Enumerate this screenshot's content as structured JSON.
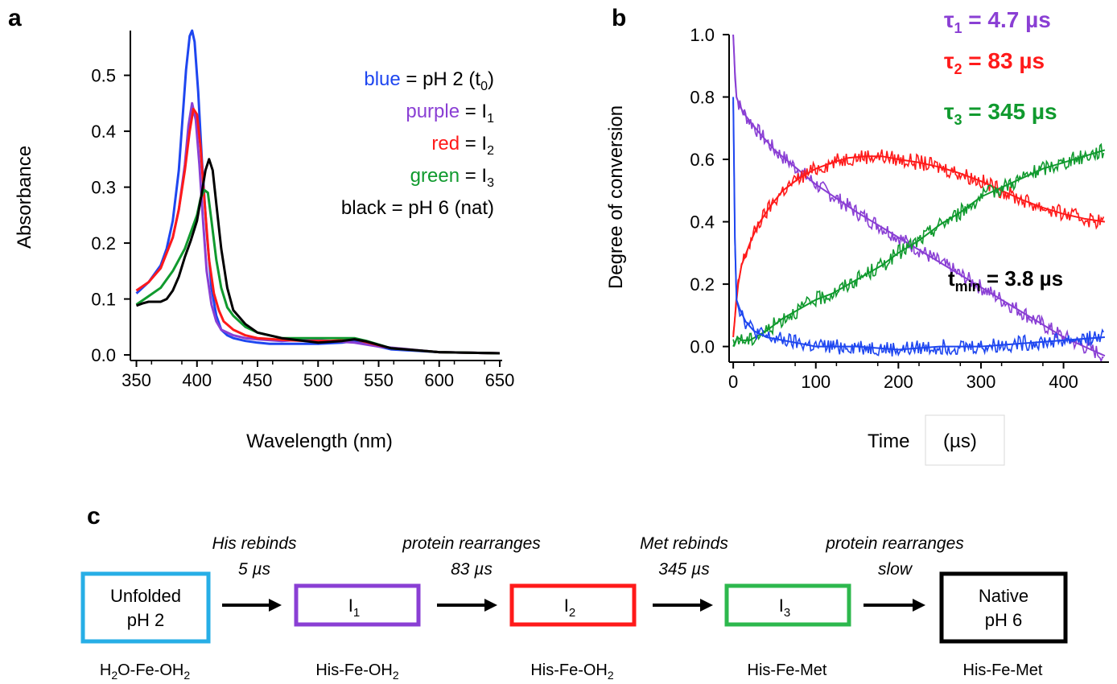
{
  "panels": {
    "a": "a",
    "b": "b",
    "c": "c"
  },
  "colors": {
    "blue": "#1e46f0",
    "purple": "#8a3fd4",
    "red": "#ff1a1a",
    "green": "#109a2e",
    "black": "#000000",
    "cyan": "#27aee6",
    "boxgreen": "#2db84d"
  },
  "chart_data": [
    {
      "id": "a",
      "type": "line",
      "xlabel": "Wavelength (nm)",
      "ylabel": "Absorbance",
      "xlim": [
        345,
        652
      ],
      "ylim": [
        -0.01,
        0.58
      ],
      "xticks": [
        350,
        400,
        450,
        500,
        550,
        600,
        650
      ],
      "yticks": [
        "0.0",
        "0.1",
        "0.2",
        "0.3",
        "0.4",
        "0.5"
      ],
      "legend": [
        {
          "color_word": "blue",
          "rest": " = pH 2 (t",
          "sub": "0",
          "tail": ")"
        },
        {
          "color_word": "purple",
          "rest": " = I",
          "sub": "1",
          "tail": ""
        },
        {
          "color_word": "red",
          "rest": " = I",
          "sub": "2",
          "tail": ""
        },
        {
          "color_word": "green",
          "rest": " = I",
          "sub": "3",
          "tail": ""
        },
        {
          "color_word": "black",
          "rest": " = pH 6 (nat)",
          "sub": "",
          "tail": ""
        }
      ],
      "series": [
        {
          "name": "blue",
          "x": [
            350,
            360,
            370,
            375,
            380,
            385,
            388,
            391,
            394,
            396,
            398,
            401,
            404,
            408,
            412,
            416,
            420,
            425,
            430,
            440,
            450,
            460,
            480,
            500,
            520,
            530,
            540,
            560,
            600,
            650
          ],
          "y": [
            0.11,
            0.13,
            0.16,
            0.19,
            0.24,
            0.33,
            0.42,
            0.51,
            0.57,
            0.58,
            0.56,
            0.47,
            0.35,
            0.22,
            0.12,
            0.07,
            0.045,
            0.035,
            0.03,
            0.025,
            0.022,
            0.02,
            0.02,
            0.02,
            0.022,
            0.025,
            0.02,
            0.01,
            0.005,
            0.003
          ]
        },
        {
          "name": "purple",
          "x": [
            350,
            360,
            370,
            380,
            385,
            390,
            393,
            396,
            399,
            402,
            405,
            408,
            412,
            416,
            420,
            430,
            440,
            450,
            470,
            490,
            510,
            530,
            550,
            600,
            650
          ],
          "y": [
            0.115,
            0.13,
            0.155,
            0.21,
            0.26,
            0.34,
            0.41,
            0.45,
            0.42,
            0.34,
            0.24,
            0.15,
            0.09,
            0.06,
            0.045,
            0.035,
            0.03,
            0.028,
            0.025,
            0.028,
            0.025,
            0.022,
            0.015,
            0.005,
            0.003
          ]
        },
        {
          "name": "red",
          "x": [
            350,
            360,
            370,
            380,
            385,
            390,
            394,
            397,
            400,
            403,
            406,
            410,
            414,
            418,
            422,
            430,
            440,
            450,
            470,
            490,
            510,
            530,
            545,
            560,
            600,
            650
          ],
          "y": [
            0.115,
            0.13,
            0.155,
            0.21,
            0.26,
            0.33,
            0.4,
            0.44,
            0.43,
            0.37,
            0.28,
            0.17,
            0.11,
            0.08,
            0.06,
            0.045,
            0.035,
            0.03,
            0.027,
            0.025,
            0.025,
            0.028,
            0.02,
            0.012,
            0.005,
            0.003
          ]
        },
        {
          "name": "green",
          "x": [
            350,
            360,
            370,
            380,
            390,
            395,
            400,
            403,
            406,
            409,
            412,
            416,
            420,
            425,
            430,
            440,
            450,
            470,
            500,
            520,
            530,
            540,
            560,
            600,
            650
          ],
          "y": [
            0.09,
            0.105,
            0.12,
            0.15,
            0.19,
            0.22,
            0.25,
            0.28,
            0.295,
            0.29,
            0.24,
            0.17,
            0.12,
            0.085,
            0.07,
            0.05,
            0.04,
            0.03,
            0.03,
            0.03,
            0.03,
            0.025,
            0.012,
            0.005,
            0.003
          ]
        },
        {
          "name": "black",
          "x": [
            350,
            355,
            360,
            370,
            375,
            380,
            385,
            390,
            395,
            400,
            404,
            407,
            410,
            413,
            416,
            420,
            425,
            430,
            440,
            450,
            470,
            500,
            520,
            530,
            540,
            560,
            600,
            650
          ],
          "y": [
            0.088,
            0.092,
            0.095,
            0.095,
            0.1,
            0.115,
            0.14,
            0.175,
            0.205,
            0.24,
            0.29,
            0.33,
            0.35,
            0.33,
            0.27,
            0.19,
            0.12,
            0.08,
            0.055,
            0.04,
            0.03,
            0.022,
            0.025,
            0.028,
            0.024,
            0.012,
            0.005,
            0.003
          ]
        }
      ]
    },
    {
      "id": "b",
      "type": "line",
      "xlabel": "Time",
      "xlabel_unit": "(µs)",
      "ylabel": "Degree of conversion",
      "xlim": [
        -5,
        455
      ],
      "ylim": [
        -0.05,
        1.0
      ],
      "xticks": [
        0,
        100,
        200,
        300,
        400
      ],
      "yticks": [
        "0.0",
        "0.2",
        "0.4",
        "0.6",
        "0.8",
        "1.0"
      ],
      "annotations": [
        {
          "sym": "τ",
          "sub": "1",
          "text": " =   4.7 µs",
          "color": "purple"
        },
        {
          "sym": "τ",
          "sub": "2",
          "text": " =  83   µs",
          "color": "red"
        },
        {
          "sym": "τ",
          "sub": "3",
          "text": " = 345  µs",
          "color": "green"
        }
      ],
      "tmin": {
        "main": "t",
        "sub": "min",
        "text": " = 3.8 µs"
      },
      "series": [
        {
          "name": "purple",
          "x": [
            0,
            2,
            4,
            8,
            15,
            30,
            50,
            75,
            100,
            125,
            150,
            175,
            200,
            225,
            250,
            275,
            300,
            325,
            350,
            375,
            400,
            425,
            450
          ],
          "y": [
            1.0,
            0.88,
            0.8,
            0.77,
            0.74,
            0.69,
            0.63,
            0.575,
            0.52,
            0.475,
            0.43,
            0.39,
            0.35,
            0.31,
            0.27,
            0.23,
            0.19,
            0.15,
            0.11,
            0.07,
            0.03,
            0.0,
            -0.03
          ]
        },
        {
          "name": "red",
          "x": [
            0,
            3,
            6,
            10,
            20,
            30,
            45,
            60,
            80,
            100,
            120,
            140,
            160,
            180,
            200,
            225,
            250,
            275,
            300,
            325,
            350,
            375,
            400,
            425,
            450
          ],
          "y": [
            0.03,
            0.12,
            0.2,
            0.26,
            0.33,
            0.39,
            0.45,
            0.5,
            0.54,
            0.57,
            0.59,
            0.605,
            0.61,
            0.61,
            0.6,
            0.59,
            0.575,
            0.555,
            0.53,
            0.5,
            0.47,
            0.445,
            0.425,
            0.41,
            0.4
          ]
        },
        {
          "name": "green",
          "x": [
            0,
            5,
            10,
            20,
            40,
            60,
            80,
            100,
            120,
            140,
            160,
            180,
            200,
            225,
            250,
            275,
            300,
            325,
            350,
            375,
            400,
            425,
            450
          ],
          "y": [
            0.0,
            0.03,
            0.02,
            0.02,
            0.05,
            0.09,
            0.12,
            0.15,
            0.17,
            0.2,
            0.23,
            0.26,
            0.3,
            0.34,
            0.39,
            0.43,
            0.48,
            0.51,
            0.54,
            0.57,
            0.59,
            0.61,
            0.63
          ]
        },
        {
          "name": "blue",
          "x": [
            0,
            2,
            4,
            8,
            15,
            25,
            40,
            60,
            80,
            100,
            150,
            200,
            250,
            300,
            350,
            400,
            450
          ],
          "y": [
            0.8,
            0.35,
            0.15,
            0.12,
            0.08,
            0.05,
            0.03,
            0.02,
            0.01,
            0.0,
            0.0,
            -0.01,
            0.0,
            0.0,
            0.01,
            0.02,
            0.03
          ]
        }
      ]
    }
  ],
  "scheme": {
    "steps": [
      {
        "line1": "His rebinds",
        "line2": "5 µs"
      },
      {
        "line1": "protein rearranges",
        "line2": "83 µs"
      },
      {
        "line1": "Met rebinds",
        "line2": "345 µs"
      },
      {
        "line1": "protein rearranges",
        "line2": "slow"
      }
    ],
    "boxes": [
      {
        "line1": "Unfolded",
        "line2": "pH 2",
        "color": "cyan"
      },
      {
        "main": "I",
        "sub": "1",
        "color": "purple"
      },
      {
        "main": "I",
        "sub": "2",
        "color": "red"
      },
      {
        "main": "I",
        "sub": "3",
        "color": "boxgreen"
      },
      {
        "line1": "Native",
        "line2": "pH 6",
        "color": "black"
      }
    ],
    "species": [
      {
        "a": "H",
        "s1": "2",
        "b": "O-Fe-OH",
        "s2": "2"
      },
      {
        "a": "His-Fe-OH",
        "s1": "2",
        "b": "",
        "s2": ""
      },
      {
        "a": "His-Fe-OH",
        "s1": "2",
        "b": "",
        "s2": ""
      },
      {
        "a": "His-Fe-Met",
        "s1": "",
        "b": "",
        "s2": ""
      },
      {
        "a": "His-Fe-Met",
        "s1": "",
        "b": "",
        "s2": ""
      }
    ]
  }
}
